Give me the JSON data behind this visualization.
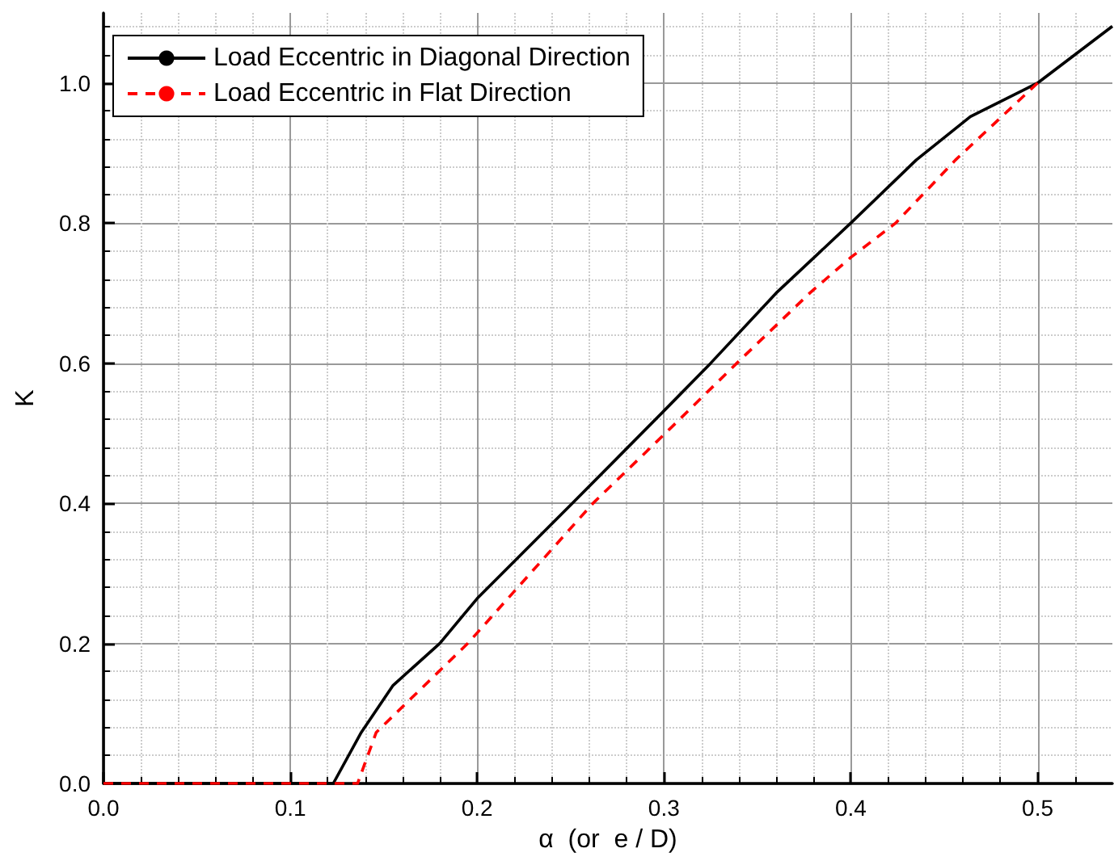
{
  "chart_data": {
    "type": "line",
    "xlabel": "α  (or  e / D)",
    "ylabel": "K",
    "xlim": [
      0,
      0.54
    ],
    "xticks": [
      {
        "value": 0,
        "label": "0.0"
      },
      0.1,
      0.2,
      0.3,
      0.4,
      0.5
    ],
    "ylim": [
      0,
      1.1
    ],
    "yticks": [
      {
        "value": 0,
        "label": "0.0"
      },
      0.2,
      0.4,
      0.6,
      0.8,
      {
        "value": 1,
        "label": "1.0"
      }
    ],
    "grid": true,
    "legend": "top left",
    "marker": "none",
    "series": [
      {
        "name": "Load Eccentric in Diagonal Direction",
        "color": "#000000",
        "line_style": "solid",
        "x": [
          0,
          0.123,
          0.138,
          0.155,
          0.18,
          0.2,
          0.251,
          0.3,
          0.325,
          0.36,
          0.4,
          0.435,
          0.464,
          0.5,
          0.54
        ],
        "values": [
          0,
          0,
          0.073,
          0.14,
          0.2,
          0.264,
          0.4,
          0.532,
          0.6,
          0.7,
          0.8,
          0.89,
          0.952,
          1.0,
          1.081
        ]
      },
      {
        "name": "Load Eccentric in Flat Direction",
        "color": "#ff0000",
        "line_style": "dashed",
        "x": [
          0,
          0.136,
          0.146,
          0.195,
          0.262,
          0.3,
          0.339,
          0.378,
          0.4,
          0.424,
          0.456,
          0.5
        ],
        "values": [
          0,
          0,
          0.073,
          0.2,
          0.4,
          0.498,
          0.6,
          0.7,
          0.751,
          0.8,
          0.89,
          1.0
        ]
      }
    ]
  }
}
